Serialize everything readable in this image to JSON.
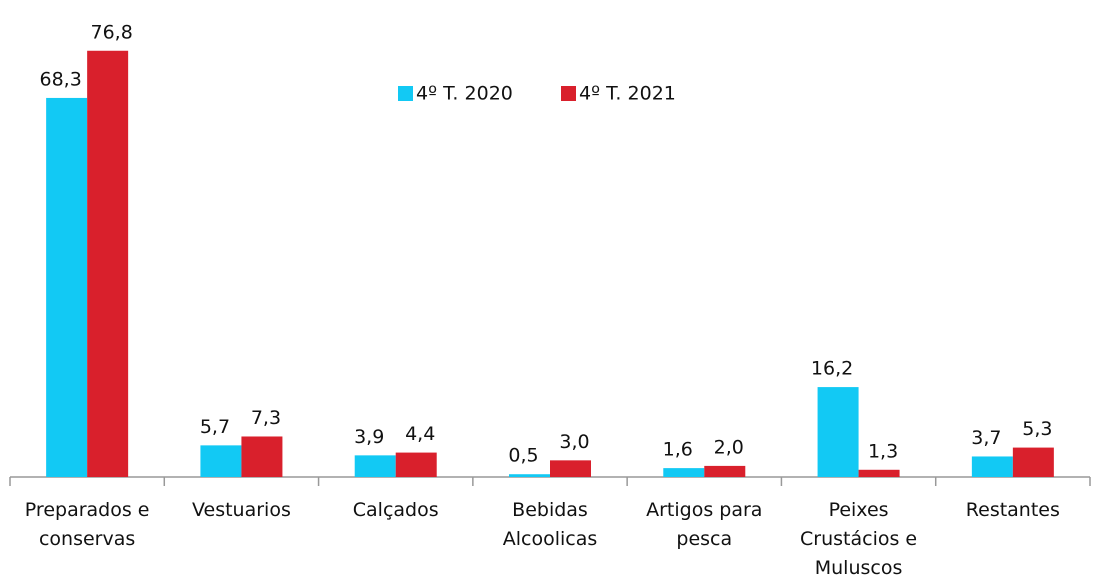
{
  "chart_data": {
    "type": "bar",
    "categories": [
      "Preparados e conservas",
      "Vestuarios",
      "Calçados",
      "Bebidas Alcoolicas",
      "Artigos para pesca",
      "Peixes Crustácios e Muluscos",
      "Restantes"
    ],
    "series": [
      {
        "name": "4º T. 2020",
        "color": "#12c9f4",
        "values": [
          68.3,
          5.7,
          3.9,
          0.5,
          1.6,
          16.2,
          3.7
        ],
        "value_labels": [
          "68,3",
          "5,7",
          "3,9",
          "0,5",
          "1,6",
          "16,2",
          "3,7"
        ]
      },
      {
        "name": "4º T. 2021",
        "color": "#d9202c",
        "values": [
          76.8,
          7.3,
          4.4,
          3.0,
          2.0,
          1.3,
          5.3
        ],
        "value_labels": [
          "76,8",
          "7,3",
          "4,4",
          "3,0",
          "2,0",
          "1,3",
          "5,3"
        ]
      }
    ],
    "legend": "top-center"
  }
}
